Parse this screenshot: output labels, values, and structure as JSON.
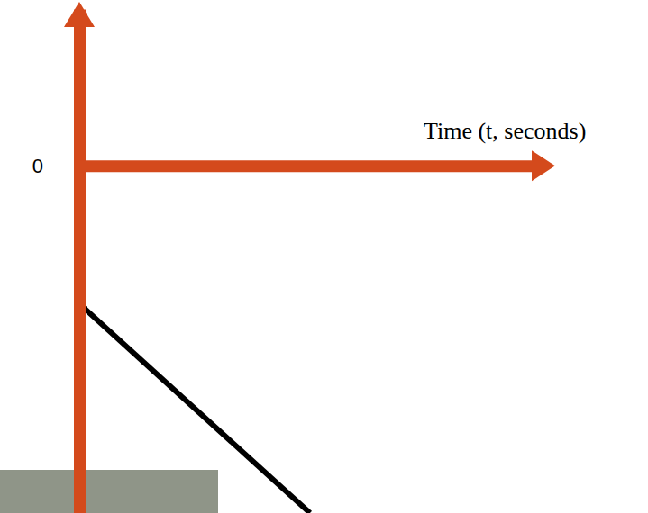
{
  "chart_data": {
    "type": "line",
    "x_label": "Time (t, seconds)",
    "x": [
      0,
      5
    ],
    "values": [
      -2.9,
      -7.3
    ],
    "color": "#000000",
    "xlim": [
      0,
      10
    ],
    "xticks": [],
    "ylim": [
      -7.3,
      3.3
    ],
    "yticks": [
      0
    ],
    "tick_labels": "y"
  }
}
